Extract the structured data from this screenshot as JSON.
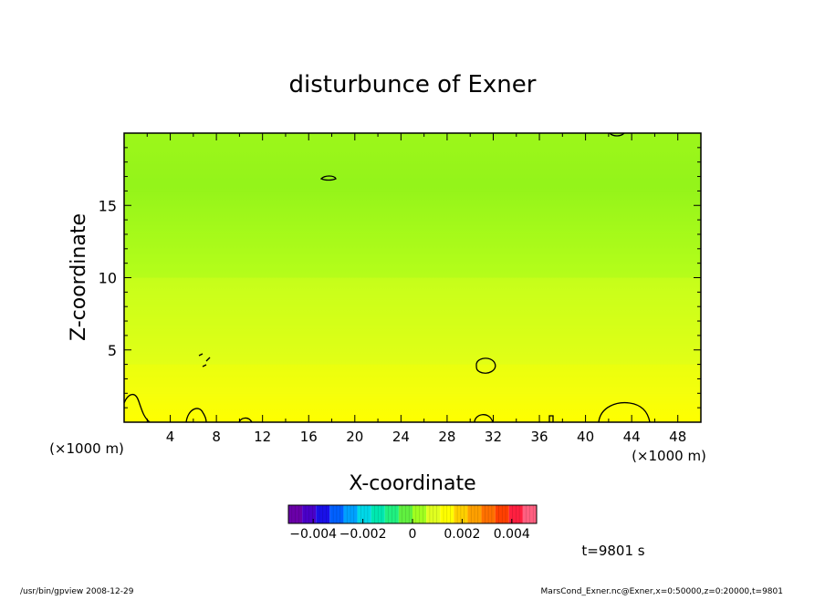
{
  "chart_data": {
    "type": "heatmap",
    "title": "disturbunce of Exner",
    "xlabel": "X-coordinate",
    "ylabel": "Z-coordinate",
    "x_unit": "(×1000 m)",
    "x_unit_left": "(×1000 m)",
    "xlim": [
      0,
      50
    ],
    "ylim": [
      0,
      20
    ],
    "x_ticks": [
      4,
      8,
      12,
      16,
      20,
      24,
      28,
      32,
      36,
      40,
      44,
      48
    ],
    "y_ticks": [
      5,
      10,
      15
    ],
    "colorbar": {
      "range": [
        -0.005,
        0.005
      ],
      "tick_values": [
        -0.004,
        -0.002,
        0,
        0.002,
        0.004
      ],
      "tick_labels": [
        "−0.004",
        "−0.002",
        "0",
        "0.002",
        "0.004"
      ],
      "colors": [
        "#6a00a8",
        "#4a00c8",
        "#1a10e8",
        "#0060ff",
        "#00a0ff",
        "#00d8e8",
        "#00e8b0",
        "#20f080",
        "#60f040",
        "#a0ff20",
        "#e0ff20",
        "#ffff00",
        "#ffd000",
        "#ffa000",
        "#ff7000",
        "#ff4000",
        "#ff2040",
        "#ff6080"
      ]
    },
    "bands": [
      {
        "z": [
          0,
          2
        ],
        "value": 0.0015
      },
      {
        "z": [
          2,
          4
        ],
        "value": 0.0012
      },
      {
        "z": [
          4,
          7
        ],
        "value": 0.0009
      },
      {
        "z": [
          7,
          10
        ],
        "value": 0.0006
      },
      {
        "z": [
          10,
          13
        ],
        "value": 0.0004
      },
      {
        "z": [
          13,
          16
        ],
        "value": 0.0002
      },
      {
        "z": [
          16,
          18
        ],
        "value": 0.0
      },
      {
        "z": [
          18,
          20
        ],
        "value": 0.0001
      }
    ],
    "time_label": "t=9801 s"
  },
  "footer": {
    "left": "/usr/bin/gpview   2008-12-29",
    "right": "MarsCond_Exner.nc@Exner,x=0:50000,z=0:20000,t=9801"
  }
}
